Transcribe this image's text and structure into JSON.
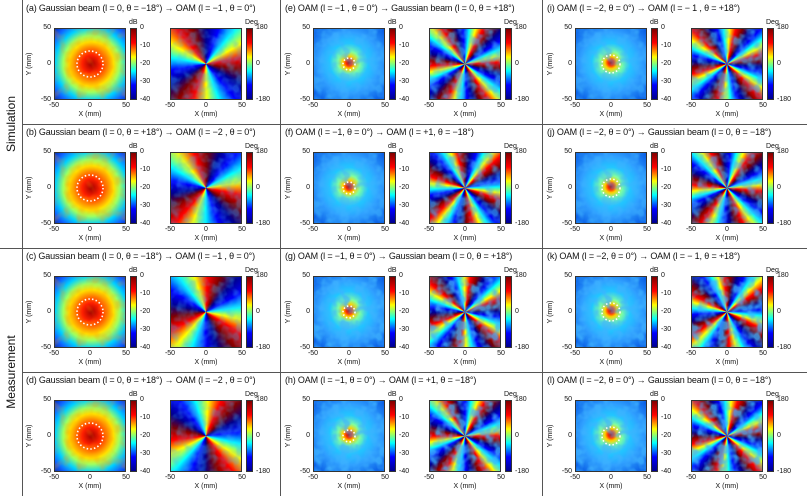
{
  "row_labels": [
    "Simulation",
    "Measurement"
  ],
  "panels": [
    {
      "title": "(a) Gaussian beam (l = 0, θ = −18°) → OAM (l = −1 , θ = 0°)"
    },
    {
      "title": "(e) OAM (l = −1 , θ = 0°) → Gaussian beam (l = 0, θ = +18°)"
    },
    {
      "title": "(i) OAM (l = −2, θ = 0°) → OAM (l = − 1 , θ = +18°)"
    },
    {
      "title": "(b) Gaussian beam (l = 0, θ = +18°) → OAM (l = −2 , θ = 0°)"
    },
    {
      "title": "(f) OAM (l = −1, θ = 0°) → OAM (l = +1, θ = −18°)"
    },
    {
      "title": "(j) OAM (l = −2, θ = 0°) → Gaussian beam (l = 0, θ = −18°)"
    },
    {
      "title": "(c) Gaussian beam (l = 0, θ = −18°) → OAM (l = −1 , θ = 0°)"
    },
    {
      "title": "(g) OAM (l = −1, θ = 0°) → Gaussian beam (l = 0, θ = +18°)"
    },
    {
      "title": "(k) OAM (l = −2, θ = 0°) → OAM (l = − 1, θ = +18°)"
    },
    {
      "title": "(d) Gaussian beam (l = 0, θ = +18°) → OAM (l = −2 , θ = 0°)"
    },
    {
      "title": "(h) OAM (l = −1, θ = 0°) → OAM (l = +1, θ = −18°)"
    },
    {
      "title": "(l) OAM (l = −2, θ = 0°) → Gaussian beam (l = 0, θ = −18°)"
    }
  ],
  "axes": {
    "x_label": "X (mm)",
    "y_label": "Y (mm)",
    "x_ticks": [
      -50,
      0,
      50
    ],
    "y_ticks": [
      50,
      0,
      -50
    ]
  },
  "amplitude_colorbar": {
    "unit": "dB",
    "ticks": [
      0,
      -10,
      -20,
      -30,
      -40
    ]
  },
  "phase_colorbar": {
    "unit": "Deg.",
    "ticks": [
      180,
      0,
      -180
    ]
  }
}
